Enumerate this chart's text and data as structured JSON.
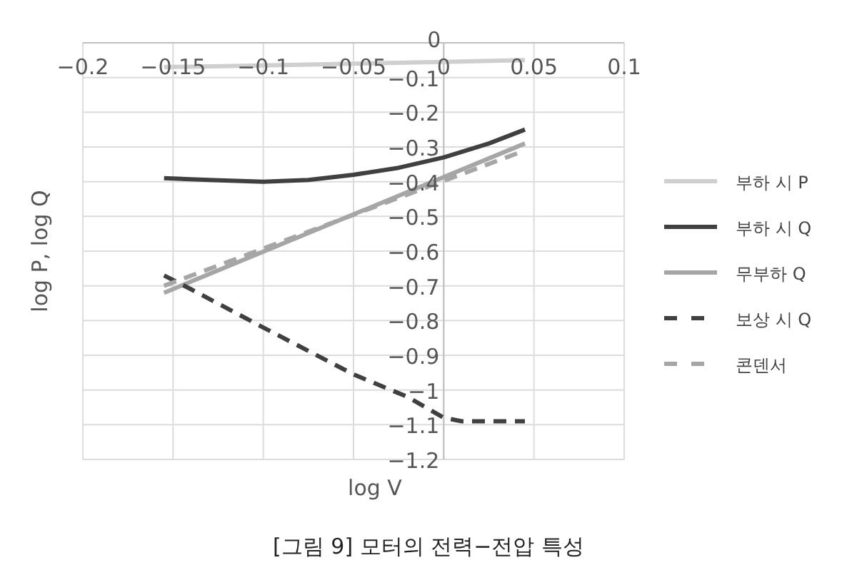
{
  "chart_data": {
    "type": "line",
    "title": "[그림 9] 모터의 전력−전압 특성",
    "xlabel": "log V",
    "ylabel": "log P, log Q",
    "series": [
      {
        "name": "부하 시 P",
        "color": "#cfcfcf",
        "x": [
          -0.155,
          -0.1,
          -0.05,
          0,
          0.045
        ],
        "values": [
          -0.07,
          -0.065,
          -0.06,
          -0.055,
          -0.05
        ],
        "line_style": "solid"
      },
      {
        "name": "부하 시 Q",
        "color": "#404040",
        "x": [
          -0.155,
          -0.13,
          -0.1,
          -0.075,
          -0.05,
          -0.025,
          0,
          0.025,
          0.045
        ],
        "values": [
          -0.39,
          -0.395,
          -0.4,
          -0.395,
          -0.38,
          -0.36,
          -0.33,
          -0.29,
          -0.25
        ],
        "line_style": "solid"
      },
      {
        "name": "무부하 Q",
        "color": "#a6a6a6",
        "x": [
          -0.155,
          0.045
        ],
        "values": [
          -0.72,
          -0.29
        ],
        "line_style": "solid"
      },
      {
        "name": "보상 시 Q",
        "color": "#404040",
        "x": [
          -0.155,
          -0.14,
          -0.1,
          -0.05,
          -0.02,
          0,
          0.01,
          0.045
        ],
        "values": [
          -0.67,
          -0.71,
          -0.82,
          -0.955,
          -1.02,
          -1.08,
          -1.09,
          -1.09
        ],
        "line_style": "dashed"
      },
      {
        "name": "콘덴서",
        "color": "#a6a6a6",
        "x": [
          -0.155,
          0.045
        ],
        "values": [
          -0.7,
          -0.31
        ],
        "line_style": "dashed"
      }
    ],
    "xlim": [
      -0.2,
      0.1
    ],
    "xticks": [
      {
        "value": -0.2,
        "label": "−0.2"
      },
      {
        "value": -0.15,
        "label": "−0.15"
      },
      {
        "value": -0.1,
        "label": "−0.1"
      },
      {
        "value": -0.05,
        "label": "−0.05"
      },
      0,
      0.05,
      0.1
    ],
    "ylim": [
      -1.2,
      0
    ],
    "yticks": [
      {
        "value": -1.2,
        "label": "−1.2"
      },
      {
        "value": -1.1,
        "label": "−1.1"
      },
      {
        "value": -1,
        "label": "−1"
      },
      {
        "value": -0.9,
        "label": "−0.9"
      },
      {
        "value": -0.8,
        "label": "−0.8"
      },
      {
        "value": -0.7,
        "label": "−0.7"
      },
      {
        "value": -0.6,
        "label": "−0.6"
      },
      {
        "value": -0.5,
        "label": "−0.5"
      },
      {
        "value": -0.4,
        "label": "−0.4"
      },
      {
        "value": -0.3,
        "label": "−0.3"
      },
      {
        "value": -0.2,
        "label": "−0.2"
      },
      {
        "value": -0.1,
        "label": "−0.1"
      },
      0
    ],
    "grid": true,
    "legend": "right",
    "marker": "none"
  }
}
